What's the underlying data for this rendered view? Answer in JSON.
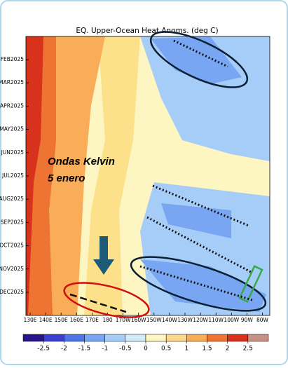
{
  "chart_data": {
    "type": "heatmap",
    "title": "EQ. Upper-Ocean Heat Anoms. (deg C)",
    "y_categories": [
      "FEB2025",
      "MAR2025",
      "APR2025",
      "MAY2025",
      "JUN2025",
      "JUL2025",
      "AUG2025",
      "SEP2025",
      "OCT2025",
      "NOV2025",
      "DEC2025"
    ],
    "x_categories": [
      "130E",
      "140E",
      "150E",
      "160E",
      "170E",
      "180",
      "170W",
      "160W",
      "150W",
      "140W",
      "130W",
      "120W",
      "110W",
      "100W",
      "90W",
      "80W"
    ],
    "annotations": [
      "Ondas Kelvin",
      "5 enero"
    ],
    "colorbar": {
      "ticks": [
        -2.5,
        -2,
        -1.5,
        -1,
        -0.5,
        0,
        0.5,
        1,
        1.5,
        2,
        2.5
      ],
      "colors": [
        "#2a1488",
        "#3a3fd0",
        "#4f74e6",
        "#78a6f2",
        "#a6cdf7",
        "#d2ebfb",
        "#fdf6c2",
        "#fcd98a",
        "#f9ad58",
        "#ee7433",
        "#d8321c",
        "#c79186"
      ]
    }
  }
}
